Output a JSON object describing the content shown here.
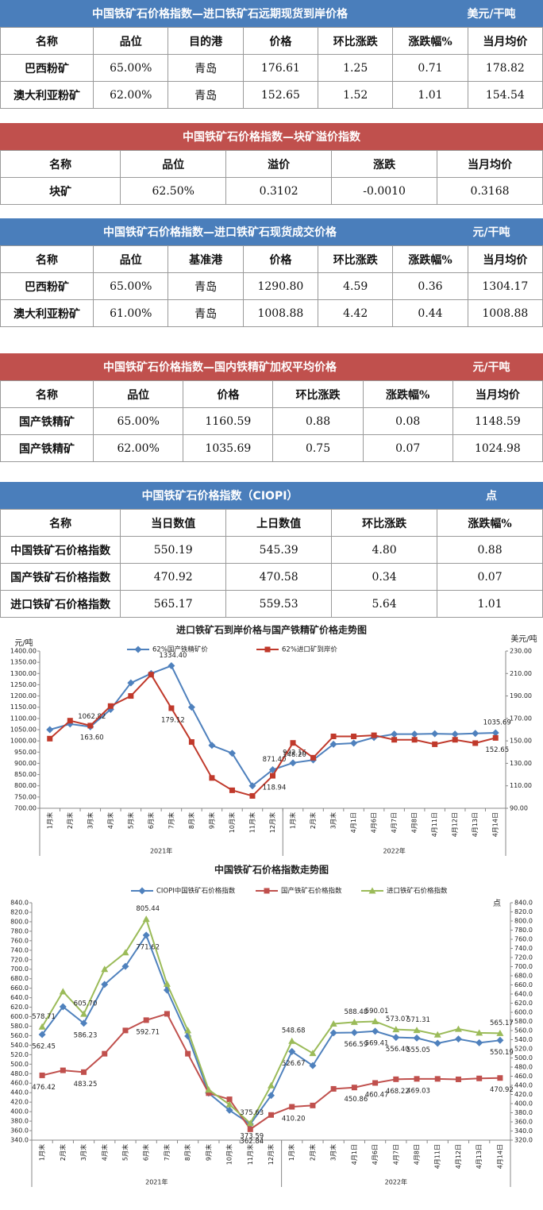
{
  "tables": [
    {
      "title": "中国铁矿石价格指数—进口铁矿石远期现货到岸价格",
      "unit": "美元/干吨",
      "color": "#4a7ebb",
      "columns": [
        "名称",
        "品位",
        "目的港",
        "价格",
        "环比涨跌",
        "涨跌幅%",
        "当月均价"
      ],
      "rows": [
        [
          "巴西粉矿",
          "65.00%",
          "青岛",
          "176.61",
          "1.25",
          "0.71",
          "178.82"
        ],
        [
          "澳大利亚粉矿",
          "62.00%",
          "青岛",
          "152.65",
          "1.52",
          "1.01",
          "154.54"
        ]
      ]
    },
    {
      "title": "中国铁矿石价格指数—块矿溢价指数",
      "color": "#c0504d",
      "columns": [
        "名称",
        "品位",
        "溢价",
        "涨跌",
        "当月均价"
      ],
      "rows": [
        [
          "块矿",
          "62.50%",
          "0.3102",
          "-0.0010",
          "0.3168"
        ]
      ]
    },
    {
      "title": "中国铁矿石价格指数—进口铁矿石现货成交价格",
      "unit": "元/干吨",
      "color": "#4a7ebb",
      "columns": [
        "名称",
        "品位",
        "基准港",
        "价格",
        "环比涨跌",
        "涨跌幅%",
        "当月均价"
      ],
      "rows": [
        [
          "巴西粉矿",
          "65.00%",
          "青岛",
          "1290.80",
          "4.59",
          "0.36",
          "1304.17"
        ],
        [
          "澳大利亚粉矿",
          "61.00%",
          "青岛",
          "1008.88",
          "4.42",
          "0.44",
          "1008.88"
        ]
      ]
    },
    {
      "title": "中国铁矿石价格指数—国内铁精矿加权平均价格",
      "unit": "元/干吨",
      "color": "#c0504d",
      "columns": [
        "名称",
        "品位",
        "价格",
        "环比涨跌",
        "涨跌幅%",
        "当月均价"
      ],
      "rows": [
        [
          "国产铁精矿",
          "65.00%",
          "1160.59",
          "0.88",
          "0.08",
          "1148.59"
        ],
        [
          "国产铁精矿",
          "62.00%",
          "1035.69",
          "0.75",
          "0.07",
          "1024.98"
        ]
      ]
    },
    {
      "title": "中国铁矿石价格指数（CIOPI）",
      "unit": "点",
      "color": "#4a7ebb",
      "columns": [
        "名称",
        "当日数值",
        "上日数值",
        "环比涨跌",
        "涨跌幅%"
      ],
      "rows": [
        [
          "中国铁矿石价格指数",
          "550.19",
          "545.39",
          "4.80",
          "0.88"
        ],
        [
          "国产铁矿石价格指数",
          "470.92",
          "470.58",
          "0.34",
          "0.07"
        ],
        [
          "进口铁矿石价格指数",
          "565.17",
          "559.53",
          "5.64",
          "1.01"
        ]
      ]
    }
  ],
  "chart_data": [
    {
      "type": "line",
      "title": "进口铁矿石到岸价格与国产铁精矿价格走势图",
      "y_label": "元/吨",
      "y2_label": "美元/吨",
      "categories": [
        "1月末",
        "2月末",
        "3月末",
        "4月末",
        "5月末",
        "6月末",
        "7月末",
        "8月末",
        "9月末",
        "10月末",
        "11月末",
        "12月末",
        "1月末",
        "2月末",
        "3月末",
        "4月1日",
        "4月6日",
        "4月7日",
        "4月8日",
        "4月11日",
        "4月12日",
        "4月13日",
        "4月14日"
      ],
      "x_groups": [
        {
          "label": "2021年",
          "count": 12
        },
        {
          "label": "2022年",
          "count": 11
        }
      ],
      "ylim": [
        700,
        1400
      ],
      "yticks": [
        {
          "value": 700,
          "label": "700.00"
        },
        {
          "value": 750,
          "label": "750.00"
        },
        {
          "value": 800,
          "label": "800.00"
        },
        {
          "value": 850,
          "label": "850.00"
        },
        {
          "value": 900,
          "label": "900.00"
        },
        {
          "value": 950,
          "label": "950.00"
        },
        {
          "value": 1000,
          "label": "1000.00"
        },
        {
          "value": 1050,
          "label": "1050.00"
        },
        {
          "value": 1100,
          "label": "1100.00"
        },
        {
          "value": 1150,
          "label": "1150.00"
        },
        {
          "value": 1200,
          "label": "1200.00"
        },
        {
          "value": 1250,
          "label": "1250.00"
        },
        {
          "value": 1300,
          "label": "1300.00"
        },
        {
          "value": 1350,
          "label": "1350.00"
        },
        {
          "value": 1400,
          "label": "1400.00"
        }
      ],
      "y2lim": [
        90,
        230
      ],
      "y2ticks": [
        {
          "value": 90,
          "label": "90.00"
        },
        {
          "value": 110,
          "label": "110.00"
        },
        {
          "value": 130,
          "label": "130.00"
        },
        {
          "value": 150,
          "label": "150.00"
        },
        {
          "value": 170,
          "label": "170.00"
        },
        {
          "value": 190,
          "label": "190.00"
        },
        {
          "value": 210,
          "label": "210.00"
        },
        {
          "value": 230,
          "label": "230.00"
        }
      ],
      "grid": false,
      "series": [
        {
          "name": "62%国产铁精矿价",
          "color": "#4f81bd",
          "marker": "diamond",
          "values": [
            1050,
            1075,
            1062.82,
            1140,
            1258,
            1300,
            1334.4,
            1150,
            980,
            945,
            800,
            871.4,
            902.16,
            915,
            985,
            990,
            1015,
            1030,
            1030,
            1032,
            1030,
            1033,
            1035.69
          ],
          "value_labels": [
            null,
            null,
            "1062.82",
            null,
            null,
            null,
            "1334.40",
            null,
            null,
            null,
            null,
            "871.40",
            "902.16",
            null,
            null,
            null,
            null,
            null,
            null,
            null,
            null,
            null,
            "1035.69"
          ]
        },
        {
          "name": "62%进口矿到岸价",
          "color": "#c0392b",
          "marker": "square",
          "axis": "y2",
          "values": [
            152,
            168,
            163.6,
            181,
            190,
            209,
            179.12,
            149,
            117,
            106,
            101,
            118.94,
            148.2,
            135,
            154,
            154,
            155,
            151,
            151,
            147,
            151,
            148,
            152.65
          ],
          "value_labels": [
            null,
            null,
            "163.60",
            null,
            null,
            null,
            "179.12",
            null,
            null,
            null,
            null,
            "118.94",
            "148.20",
            null,
            null,
            null,
            null,
            null,
            null,
            null,
            null,
            null,
            "152.65"
          ]
        }
      ]
    },
    {
      "type": "line",
      "title": "中国铁矿石价格指数走势图",
      "y2_label": "点",
      "categories": [
        "1月末",
        "2月末",
        "3月末",
        "4月末",
        "5月末",
        "6月末",
        "7月末",
        "8月末",
        "9月末",
        "10月末",
        "11月末",
        "12月末",
        "1月末",
        "2月末",
        "3月末",
        "4月1日",
        "4月6日",
        "4月7日",
        "4月8日",
        "4月11日",
        "4月12日",
        "4月13日",
        "4月14日"
      ],
      "x_groups": [
        {
          "label": "2021年",
          "count": 12
        },
        {
          "label": "2022年",
          "count": 11
        }
      ],
      "ylim": [
        340,
        840
      ],
      "yticks": [
        {
          "value": 340,
          "label": "340.0"
        },
        {
          "value": 360,
          "label": "360.0"
        },
        {
          "value": 380,
          "label": "380.0"
        },
        {
          "value": 400,
          "label": "400.0"
        },
        {
          "value": 420,
          "label": "420.0"
        },
        {
          "value": 440,
          "label": "440.0"
        },
        {
          "value": 460,
          "label": "460.0"
        },
        {
          "value": 480,
          "label": "480.0"
        },
        {
          "value": 500,
          "label": "500.0"
        },
        {
          "value": 520,
          "label": "520.0"
        },
        {
          "value": 540,
          "label": "540.0"
        },
        {
          "value": 560,
          "label": "560.0"
        },
        {
          "value": 580,
          "label": "580.0"
        },
        {
          "value": 600,
          "label": "600.0"
        },
        {
          "value": 620,
          "label": "620.0"
        },
        {
          "value": 640,
          "label": "640.0"
        },
        {
          "value": 660,
          "label": "660.0"
        },
        {
          "value": 680,
          "label": "680.0"
        },
        {
          "value": 700,
          "label": "700.0"
        },
        {
          "value": 720,
          "label": "720.0"
        },
        {
          "value": 740,
          "label": "740.0"
        },
        {
          "value": 760,
          "label": "760.0"
        },
        {
          "value": 780,
          "label": "780.0"
        },
        {
          "value": 800,
          "label": "800.0"
        },
        {
          "value": 820,
          "label": "820.0"
        },
        {
          "value": 840,
          "label": "840.0"
        }
      ],
      "y2lim": [
        320,
        840
      ],
      "y2ticks": [
        {
          "value": 320,
          "label": "320.0"
        },
        {
          "value": 340,
          "label": "340.0"
        },
        {
          "value": 360,
          "label": "360.0"
        },
        {
          "value": 380,
          "label": "380.0"
        },
        {
          "value": 400,
          "label": "400.0"
        },
        {
          "value": 420,
          "label": "420.0"
        },
        {
          "value": 440,
          "label": "440.0"
        },
        {
          "value": 460,
          "label": "460.0"
        },
        {
          "value": 480,
          "label": "480.0"
        },
        {
          "value": 500,
          "label": "500.0"
        },
        {
          "value": 520,
          "label": "520.0"
        },
        {
          "value": 540,
          "label": "540.0"
        },
        {
          "value": 560,
          "label": "560.0"
        },
        {
          "value": 580,
          "label": "580.0"
        },
        {
          "value": 600,
          "label": "600.0"
        },
        {
          "value": 620,
          "label": "620.0"
        },
        {
          "value": 640,
          "label": "640.0"
        },
        {
          "value": 660,
          "label": "660.0"
        },
        {
          "value": 680,
          "label": "680.0"
        },
        {
          "value": 700,
          "label": "700.0"
        },
        {
          "value": 720,
          "label": "720.0"
        },
        {
          "value": 740,
          "label": "740.0"
        },
        {
          "value": 760,
          "label": "760.0"
        },
        {
          "value": 780,
          "label": "780.0"
        },
        {
          "value": 800,
          "label": "800.0"
        },
        {
          "value": 820,
          "label": "820.0"
        },
        {
          "value": 840,
          "label": "840.0"
        }
      ],
      "grid": false,
      "series": [
        {
          "name": "CIOPI中国铁矿石价格指数",
          "color": "#4f81bd",
          "marker": "diamond",
          "values": [
            562.45,
            621,
            586.23,
            668,
            706,
            771.62,
            656,
            559,
            439,
            403,
            373.59,
            434,
            526.67,
            497,
            566,
            566.59,
            569.41,
            556.4,
            555.05,
            544,
            553,
            545,
            550.19
          ],
          "value_labels": [
            "562.45",
            null,
            "586.23",
            null,
            null,
            "771.62",
            null,
            null,
            null,
            null,
            "373.59",
            null,
            "526.67",
            null,
            null,
            "566.59",
            "569.41",
            "556.40",
            "555.05",
            null,
            null,
            null,
            "550.19"
          ]
        },
        {
          "name": "国产铁矿石价格指数",
          "color": "#c0504d",
          "marker": "square",
          "values": [
            476.42,
            487,
            483.25,
            522,
            571,
            592.71,
            606,
            522,
            439,
            426,
            362.84,
            393,
            410.2,
            413,
            448,
            450.86,
            460.47,
            468.22,
            469.03,
            469,
            468,
            470,
            470.92
          ],
          "value_labels": [
            "476.42",
            null,
            "483.25",
            null,
            null,
            "592.71",
            null,
            null,
            null,
            null,
            "362.84",
            null,
            "410.20",
            null,
            null,
            "450.86",
            "460.47",
            "468.22",
            "469.03",
            null,
            null,
            null,
            "470.92"
          ]
        },
        {
          "name": "进口铁矿石价格指数",
          "color": "#9bbb59",
          "marker": "triangle",
          "values": [
            578.71,
            653,
            605.7,
            700,
            735,
            805.44,
            669,
            571,
            446,
            415,
            375.63,
            455,
            548.68,
            523,
            585,
            588.48,
            590.01,
            573.07,
            571.31,
            562,
            574,
            566,
            565.17
          ],
          "value_labels": [
            "578.71",
            null,
            "605.70",
            null,
            null,
            "805.44",
            null,
            null,
            null,
            null,
            "375.63",
            null,
            "548.68",
            null,
            null,
            "588.48",
            "590.01",
            "573.07",
            "571.31",
            null,
            null,
            null,
            "565.17"
          ]
        }
      ]
    }
  ]
}
